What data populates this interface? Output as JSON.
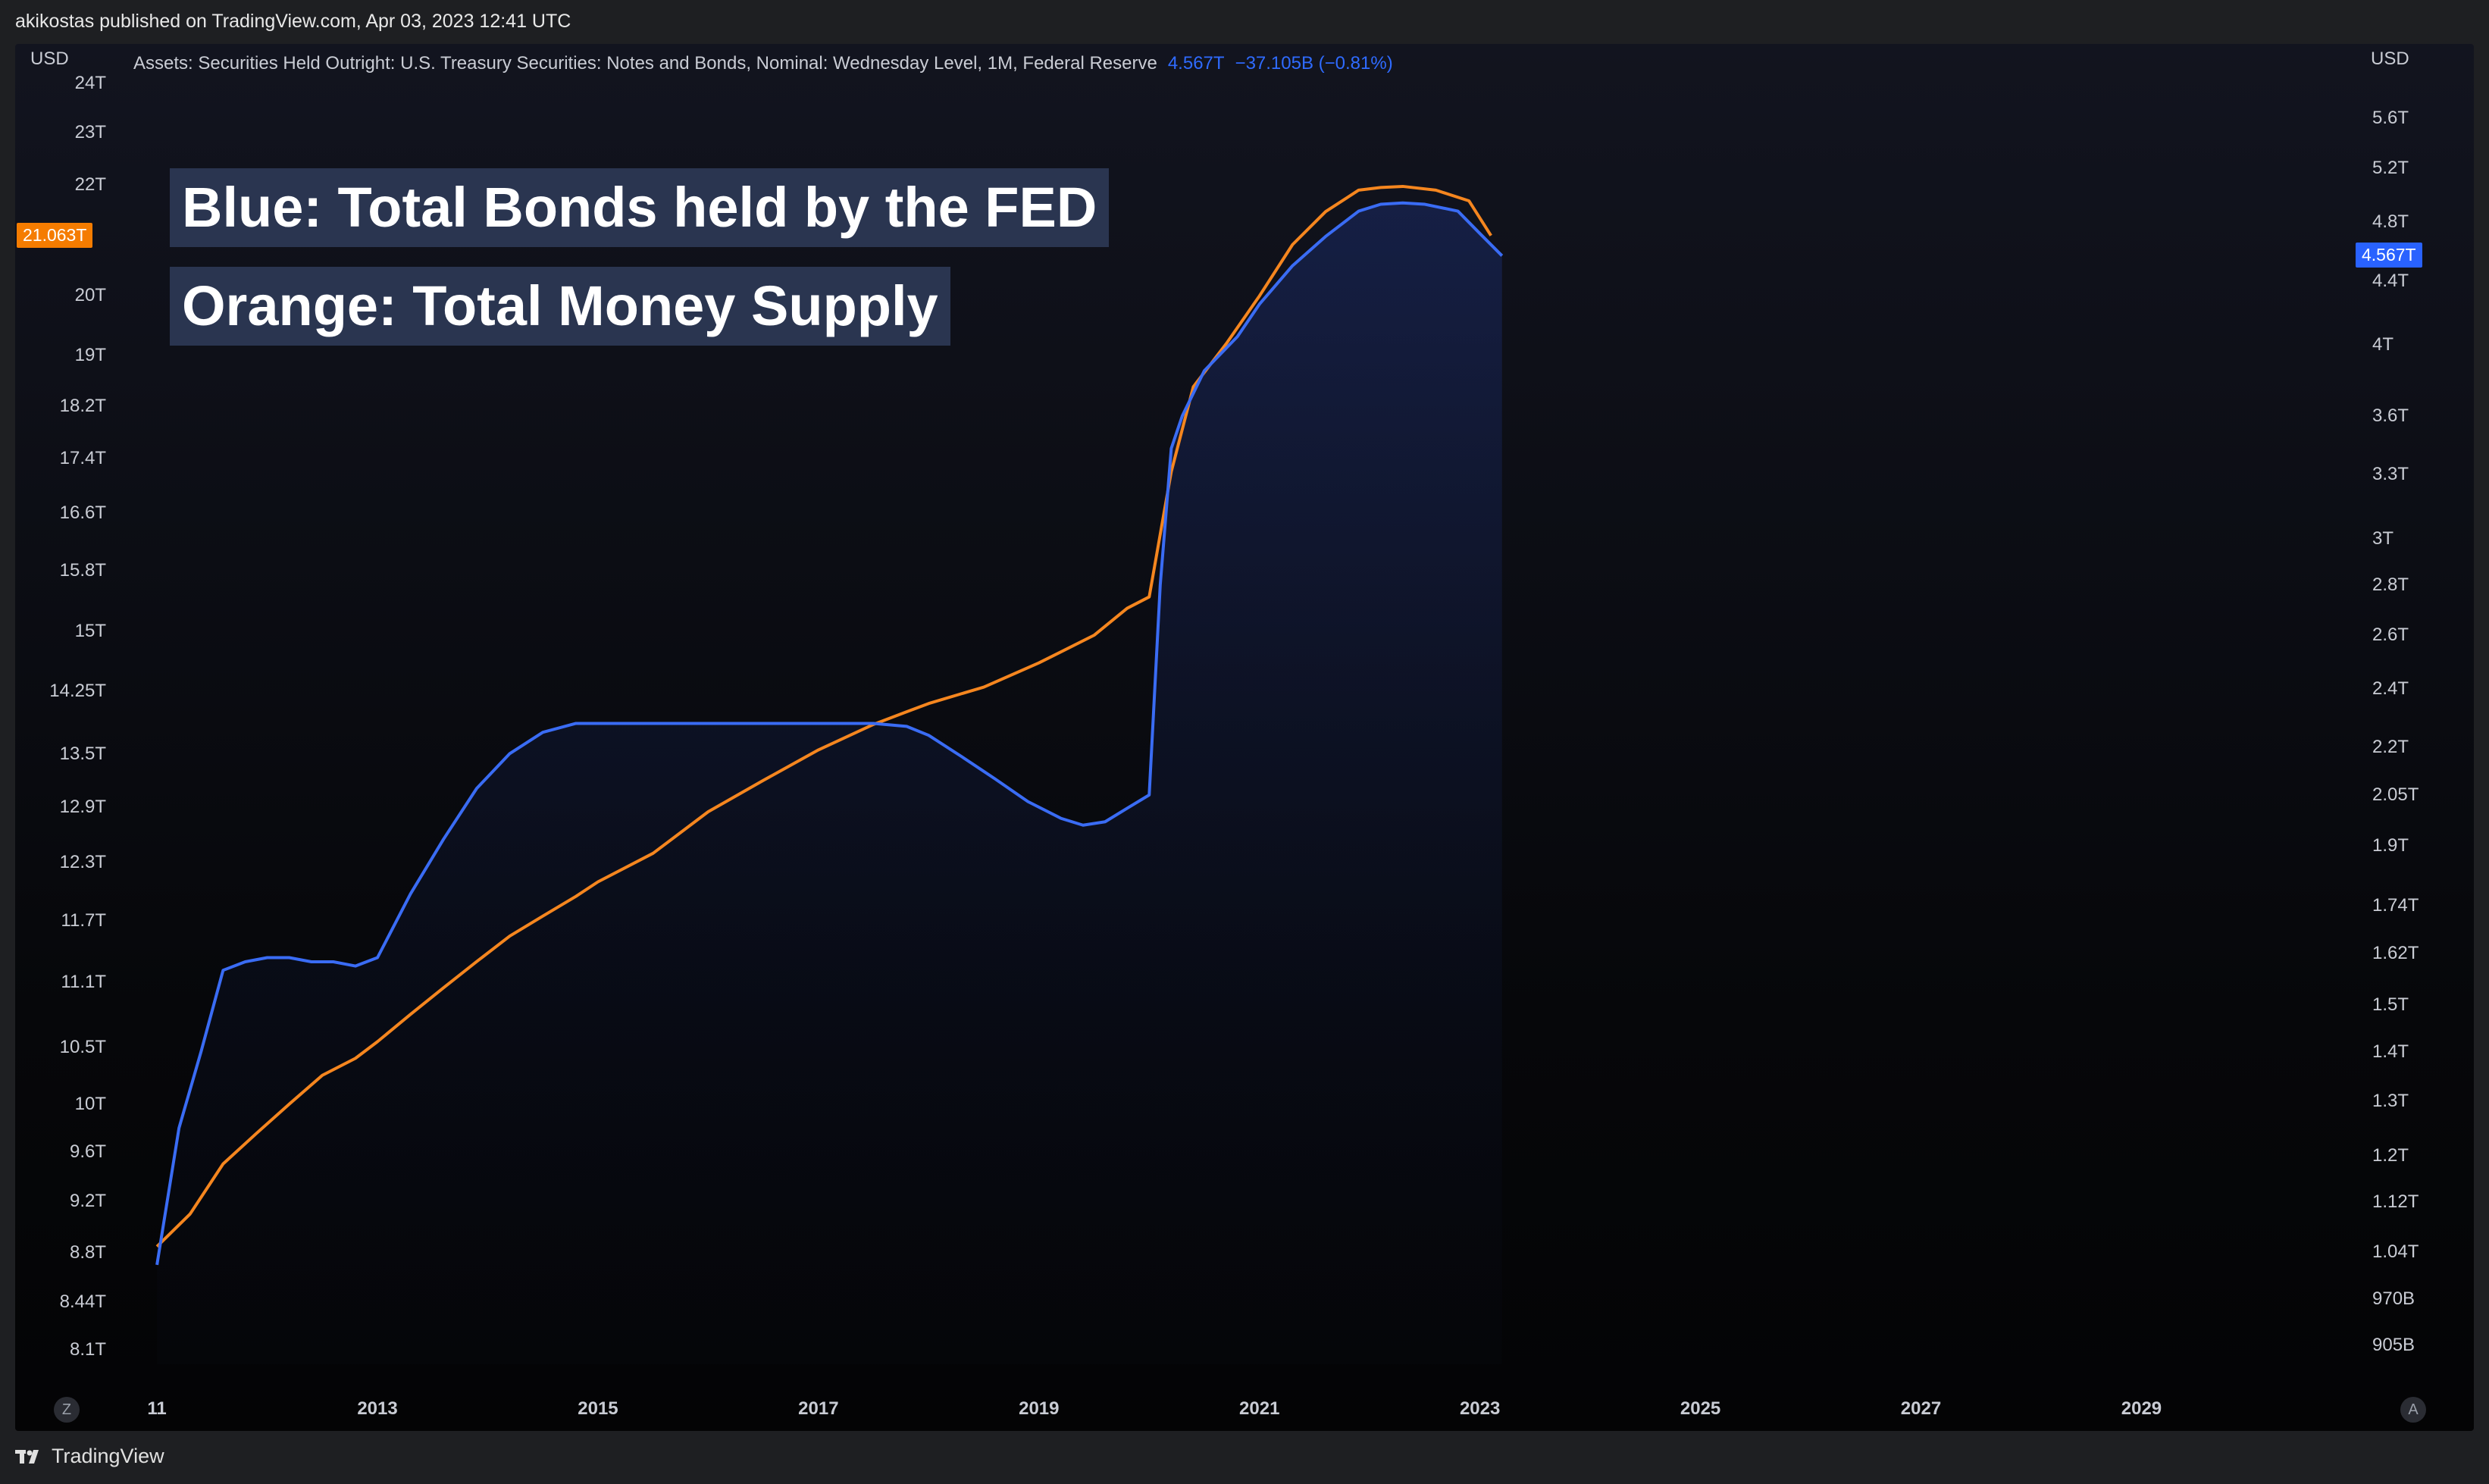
{
  "header": {
    "publish_info": "akikostas published on TradingView.com, Apr 03, 2023 12:41 UTC"
  },
  "footer": {
    "brand": "TradingView",
    "brand_icon": "tradingview-logo-icon"
  },
  "legend": {
    "title": "Assets: Securities Held Outright: U.S. Treasury Securities: Notes and Bonds, Nominal: Wednesday Level, 1M, Federal Reserve",
    "value": "4.567T",
    "change": "−37.105B (−0.81%)"
  },
  "annotations": {
    "blue": "Blue: Total Bonds held by the FED",
    "orange": "Orange: Total Money Supply"
  },
  "axes": {
    "left_unit": "USD",
    "right_unit": "USD",
    "left_ticks": [
      "24T",
      "23T",
      "22T",
      "20T",
      "19T",
      "18.2T",
      "17.4T",
      "16.6T",
      "15.8T",
      "15T",
      "14.25T",
      "13.5T",
      "12.9T",
      "12.3T",
      "11.7T",
      "11.1T",
      "10.5T",
      "10T",
      "9.6T",
      "9.2T",
      "8.8T",
      "8.44T",
      "8.1T"
    ],
    "right_ticks": [
      "5.6T",
      "5.2T",
      "4.8T",
      "4.4T",
      "4T",
      "3.6T",
      "3.3T",
      "3T",
      "2.8T",
      "2.6T",
      "2.4T",
      "2.2T",
      "2.05T",
      "1.9T",
      "1.74T",
      "1.62T",
      "1.5T",
      "1.4T",
      "1.3T",
      "1.2T",
      "1.12T",
      "1.04T",
      "970B",
      "905B"
    ],
    "x_ticks": [
      "11",
      "2013",
      "2015",
      "2017",
      "2019",
      "2021",
      "2023",
      "2025",
      "2027",
      "2029"
    ],
    "left_price_label": "21.063T",
    "right_price_label": "4.567T",
    "buttons": {
      "left": "Z",
      "right": "A"
    }
  },
  "colors": {
    "blue_series": "#3a6cf4",
    "orange_series": "#f5861f",
    "left_label_bg": "#f57c00",
    "right_label_bg": "#2962ff"
  },
  "chart_data": {
    "type": "line",
    "scale": "log",
    "series": [
      {
        "name": "Assets: Securities Held Outright: U.S. Treasury Securities: Notes and Bonds, Nominal: Wednesday Level, 1M, Federal Reserve",
        "axis": "right",
        "x": [
          2011.0,
          2011.2,
          2011.4,
          2011.6,
          2011.8,
          2012.0,
          2012.2,
          2012.4,
          2012.6,
          2012.8,
          2013.0,
          2013.3,
          2013.6,
          2013.9,
          2014.2,
          2014.5,
          2014.8,
          2015.0,
          2015.5,
          2016.0,
          2016.5,
          2017.0,
          2017.5,
          2017.8,
          2018.0,
          2018.3,
          2018.6,
          2018.9,
          2019.2,
          2019.4,
          2019.6,
          2019.8,
          2020.0,
          2020.1,
          2020.2,
          2020.3,
          2020.5,
          2020.8,
          2021.0,
          2021.3,
          2021.6,
          2021.9,
          2022.1,
          2022.3,
          2022.5,
          2022.8,
          2023.0,
          2023.2
        ],
        "values": [
          1.02,
          1.25,
          1.4,
          1.58,
          1.6,
          1.61,
          1.61,
          1.6,
          1.6,
          1.59,
          1.61,
          1.77,
          1.92,
          2.07,
          2.18,
          2.25,
          2.28,
          2.28,
          2.28,
          2.28,
          2.28,
          2.28,
          2.28,
          2.27,
          2.24,
          2.17,
          2.1,
          2.03,
          1.98,
          1.96,
          1.97,
          2.01,
          2.05,
          2.8,
          3.43,
          3.6,
          3.85,
          4.05,
          4.25,
          4.5,
          4.7,
          4.88,
          4.93,
          4.94,
          4.93,
          4.88,
          4.72,
          4.567
        ]
      },
      {
        "name": "Orange: Total Money Supply",
        "axis": "left",
        "x": [
          2011.0,
          2011.3,
          2011.6,
          2011.9,
          2012.2,
          2012.5,
          2012.8,
          2013.0,
          2013.3,
          2013.6,
          2013.9,
          2014.2,
          2014.5,
          2014.8,
          2015.0,
          2015.5,
          2016.0,
          2016.5,
          2017.0,
          2017.5,
          2017.8,
          2018.0,
          2018.5,
          2019.0,
          2019.5,
          2019.8,
          2020.0,
          2020.2,
          2020.4,
          2020.7,
          2021.0,
          2021.3,
          2021.6,
          2021.9,
          2022.1,
          2022.3,
          2022.6,
          2022.9,
          2023.1
        ],
        "values": [
          8.85,
          9.1,
          9.5,
          9.75,
          10.0,
          10.25,
          10.4,
          10.55,
          10.8,
          11.05,
          11.3,
          11.55,
          11.75,
          11.95,
          12.1,
          12.4,
          12.85,
          13.2,
          13.55,
          13.85,
          14.0,
          14.1,
          14.3,
          14.6,
          14.95,
          15.3,
          15.45,
          17.2,
          18.5,
          19.2,
          20.0,
          20.9,
          21.5,
          21.9,
          21.95,
          21.97,
          21.9,
          21.7,
          21.063
        ]
      }
    ],
    "left_axis": {
      "unit": "USD",
      "ylim": [
        8.0,
        24.0
      ]
    },
    "right_axis": {
      "unit": "USD",
      "ylim": [
        0.88,
        5.9
      ]
    },
    "xlim": [
      2010.8,
      2030.2
    ],
    "legend_position": "top-left",
    "grid": false
  }
}
